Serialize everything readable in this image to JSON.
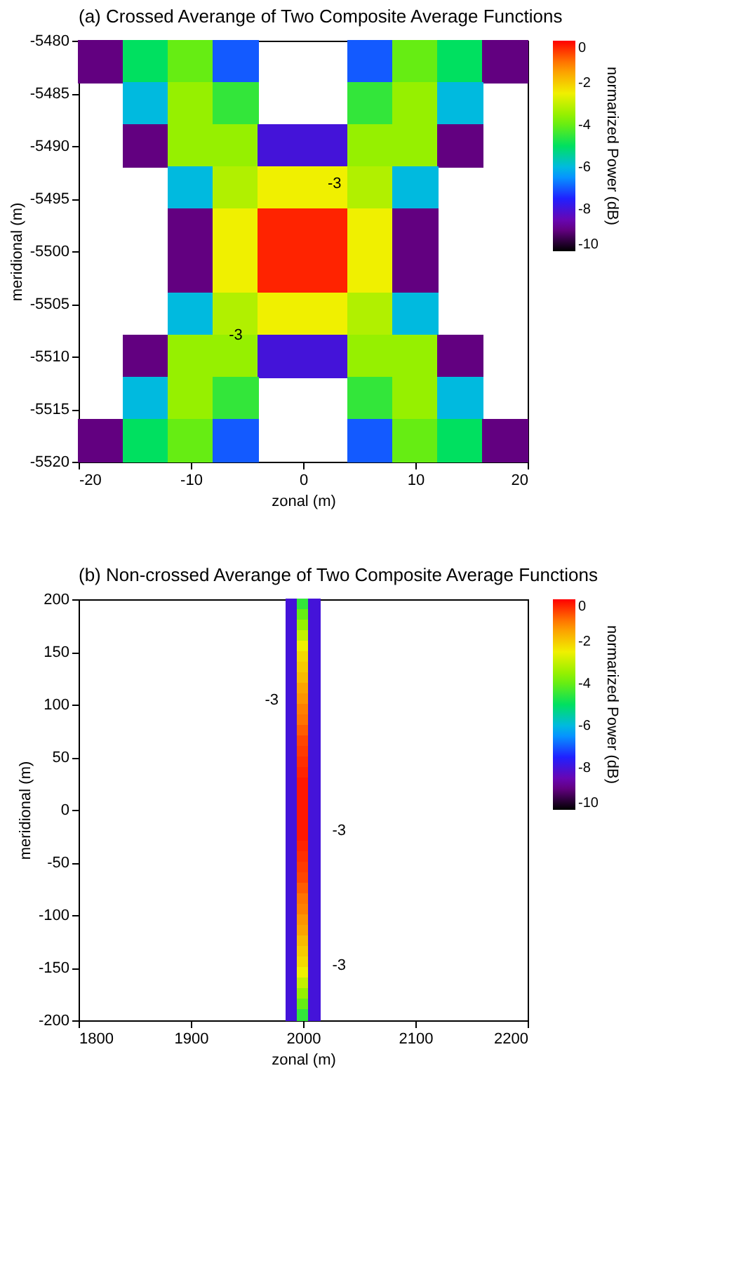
{
  "chart_data": [
    {
      "type": "scatter",
      "marker": "square",
      "title": "(a) Crossed Averange of Two Composite Average Functions",
      "xlabel": "zonal (m)",
      "ylabel": "meridional (m)",
      "clabel": "normarized Power (dB)",
      "x": [
        -18,
        -14,
        -10,
        -6,
        6,
        10,
        14,
        18,
        -14,
        -10,
        -6,
        6,
        10,
        14,
        -14,
        -10,
        -6,
        -2,
        2,
        6,
        10,
        14,
        -10,
        -6,
        -2,
        2,
        6,
        10,
        -10,
        -6,
        -2,
        2,
        6,
        10,
        -10,
        -6,
        -2,
        2,
        6,
        10,
        -10,
        -6,
        -2,
        2,
        6,
        10,
        -14,
        -10,
        -6,
        -2,
        2,
        6,
        10,
        14,
        -14,
        -10,
        -6,
        6,
        10,
        14,
        -18,
        -14,
        -10,
        -6,
        6,
        10,
        14,
        18
      ],
      "values": [
        -5482,
        -5482,
        -5482,
        -5482,
        -5482,
        -5482,
        -5482,
        -5482,
        -5486,
        -5486,
        -5486,
        -5486,
        -5486,
        -5486,
        -5490,
        -5490,
        -5490,
        -5490,
        -5490,
        -5490,
        -5490,
        -5490,
        -5494,
        -5494,
        -5494,
        -5494,
        -5494,
        -5494,
        -5498,
        -5498,
        -5498,
        -5498,
        -5498,
        -5498,
        -5502,
        -5502,
        -5502,
        -5502,
        -5502,
        -5502,
        -5506,
        -5506,
        -5506,
        -5506,
        -5506,
        -5506,
        -5510,
        -5510,
        -5510,
        -5510,
        -5510,
        -5510,
        -5510,
        -5510,
        -5514,
        -5514,
        -5514,
        -5514,
        -5514,
        -5514,
        -5518,
        -5518,
        -5518,
        -5518,
        -5518,
        -5518,
        -5518,
        -5518
      ],
      "cvalues": [
        -9,
        -5,
        -4,
        -7,
        -7,
        -4,
        -5,
        -9,
        -6,
        -3.5,
        -4.5,
        -4.5,
        -3.5,
        -6,
        -9,
        -3.5,
        -3.5,
        -8,
        -8,
        -3.5,
        -3.5,
        -9,
        -6,
        -3.2,
        -2.5,
        -2.5,
        -3.2,
        -6,
        -9,
        -2.5,
        -0.3,
        -0.3,
        -2.5,
        -9,
        -9,
        -2.5,
        -0.3,
        -0.3,
        -2.5,
        -9,
        -6,
        -3.2,
        -2.5,
        -2.5,
        -3.2,
        -6,
        -9,
        -3.5,
        -3.5,
        -8,
        -8,
        -3.5,
        -3.5,
        -9,
        -6,
        -3.5,
        -4.5,
        -4.5,
        -3.5,
        -6,
        -9,
        -5,
        -4,
        -7,
        -7,
        -4,
        -5,
        -9
      ],
      "xlim": [
        -20,
        20
      ],
      "xticks": [
        -20,
        -10,
        0,
        10,
        20
      ],
      "ylim": [
        -5520,
        -5480
      ],
      "yticks": [
        -5520,
        -5515,
        -5510,
        -5505,
        -5500,
        -5495,
        -5490,
        -5485,
        -5480
      ],
      "clim": [
        -10,
        0
      ],
      "cticks": [
        -10,
        -8,
        -6,
        -4,
        -2,
        0
      ],
      "grid": false,
      "annotations": [
        "-3",
        "-3"
      ]
    },
    {
      "type": "scatter",
      "marker": "square",
      "title": "(b) Non-crossed Averange of Two Composite Average Functions",
      "xlabel": "zonal (m)",
      "ylabel": "meridional (m)",
      "clabel": "normarized Power (dB)",
      "x": [
        1990,
        2000,
        2010,
        1990,
        2000,
        2010,
        1990,
        2000,
        2010,
        1990,
        2000,
        2010,
        1990,
        2000,
        2010,
        1990,
        2000,
        2010,
        1990,
        2000,
        2010,
        1990,
        2000,
        2010,
        1990,
        2000,
        2010,
        1990,
        2000,
        2010,
        1990,
        2000,
        2010,
        1990,
        2000,
        2010,
        1990,
        2000,
        2010,
        1990,
        2000,
        2010,
        1990,
        2000,
        2010,
        1990,
        2000,
        2010,
        1990,
        2000,
        2010,
        1990,
        2000,
        2010,
        1990,
        2000,
        2010,
        1990,
        2000,
        2010,
        1990,
        2000,
        2010,
        1990,
        2000,
        2010,
        1990,
        2000,
        2010,
        1990,
        2000,
        2010,
        1990,
        2000,
        2010,
        1990,
        2000,
        2010,
        1990,
        2000,
        2010,
        1990,
        2000,
        2010,
        1990,
        2000,
        2010,
        1990,
        2000,
        2010,
        1990,
        2000,
        2010,
        1990,
        2000,
        2010,
        1990,
        2000,
        2010,
        1990,
        2000,
        2010,
        1990,
        2000,
        2010,
        1990,
        2000,
        2010,
        1990,
        2000,
        2010,
        1990,
        2000,
        2010,
        1990,
        2000,
        2010,
        1990,
        2000,
        2010
      ],
      "values": [
        195,
        195,
        195,
        185,
        185,
        185,
        175,
        175,
        175,
        165,
        165,
        165,
        155,
        155,
        155,
        145,
        145,
        145,
        135,
        135,
        135,
        125,
        125,
        125,
        115,
        115,
        115,
        105,
        105,
        105,
        95,
        95,
        95,
        85,
        85,
        85,
        75,
        75,
        75,
        65,
        65,
        65,
        55,
        55,
        55,
        45,
        45,
        45,
        35,
        35,
        35,
        25,
        25,
        25,
        15,
        15,
        15,
        5,
        5,
        5,
        -5,
        -5,
        -5,
        -15,
        -15,
        -15,
        -25,
        -25,
        -25,
        -35,
        -35,
        -35,
        -45,
        -45,
        -45,
        -55,
        -55,
        -55,
        -65,
        -65,
        -65,
        -75,
        -75,
        -75,
        -85,
        -85,
        -85,
        -95,
        -95,
        -95,
        -105,
        -105,
        -105,
        -115,
        -115,
        -115,
        -125,
        -125,
        -125,
        -135,
        -135,
        -135,
        -145,
        -145,
        -145,
        -155,
        -155,
        -155,
        -165,
        -165,
        -165,
        -175,
        -175,
        -175,
        -185,
        -185,
        -185,
        -195,
        -195,
        -195
      ],
      "cvalues": [
        -8,
        -4.5,
        -8,
        -8,
        -4,
        -8,
        -8,
        -3.5,
        -8,
        -8,
        -3,
        -8,
        -8,
        -2.5,
        -8,
        -8,
        -2.2,
        -8,
        -8,
        -2,
        -8,
        -8,
        -1.8,
        -8,
        -8,
        -1.5,
        -8,
        -8,
        -1.3,
        -8,
        -8,
        -1.1,
        -8,
        -8,
        -1,
        -8,
        -8,
        -0.8,
        -8,
        -8,
        -0.6,
        -8,
        -8,
        -0.5,
        -8,
        -8,
        -0.4,
        -8,
        -8,
        -0.3,
        -8,
        -8,
        -0.2,
        -8,
        -8,
        -0.2,
        -8,
        -8,
        -0.2,
        -8,
        -8,
        -0.2,
        -8,
        -8,
        -0.2,
        -8,
        -8,
        -0.2,
        -8,
        -8,
        -0.3,
        -8,
        -8,
        -0.4,
        -8,
        -8,
        -0.5,
        -8,
        -8,
        -0.6,
        -8,
        -8,
        -0.8,
        -8,
        -8,
        -1,
        -8,
        -8,
        -1.1,
        -8,
        -8,
        -1.3,
        -8,
        -8,
        -1.5,
        -8,
        -8,
        -1.8,
        -8,
        -8,
        -2,
        -8,
        -8,
        -2.2,
        -8,
        -8,
        -2.5,
        -8,
        -8,
        -3,
        -8,
        -8,
        -3.5,
        -8,
        -8,
        -4,
        -8,
        -8,
        -4.5,
        -8
      ],
      "xlim": [
        1800,
        2200
      ],
      "xticks": [
        1800,
        1900,
        2000,
        2100,
        2200
      ],
      "ylim": [
        -200,
        200
      ],
      "yticks": [
        -200,
        -150,
        -100,
        -50,
        0,
        50,
        100,
        150,
        200
      ],
      "clim": [
        -10,
        0
      ],
      "cticks": [
        -10,
        -8,
        -6,
        -4,
        -2,
        0
      ],
      "grid": false,
      "annotations": [
        "-3",
        "-3",
        "-3"
      ]
    }
  ]
}
